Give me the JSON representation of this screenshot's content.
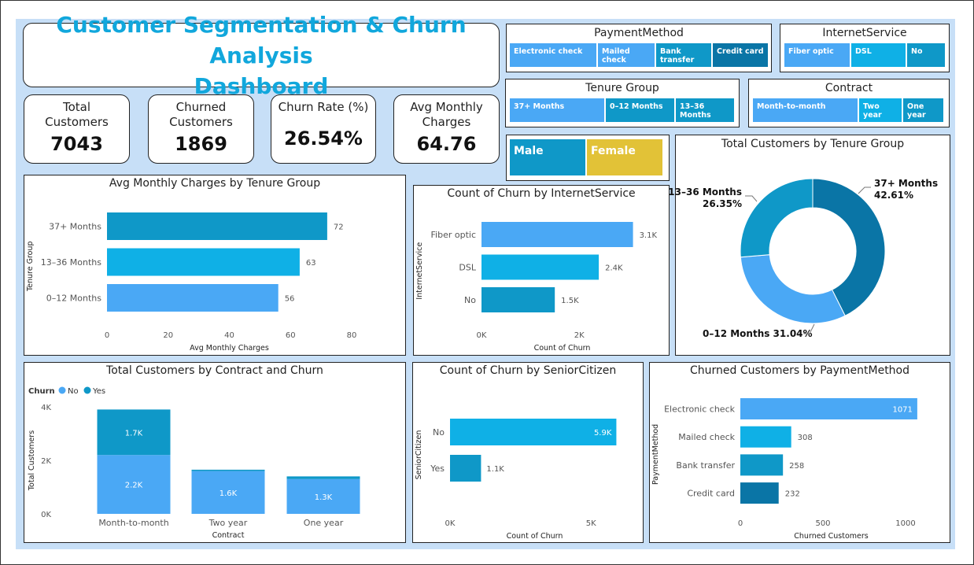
{
  "title": {
    "line1": "Customer Segmentation & Churn Analysis",
    "line2": "Dashboard"
  },
  "kpis": [
    {
      "label1": "Total",
      "label2": "Customers",
      "value": "7043"
    },
    {
      "label1": "Churned",
      "label2": "Customers",
      "value": "1869"
    },
    {
      "label1": "Churn Rate (%)",
      "label2": "",
      "value": "26.54%"
    },
    {
      "label1": "Avg Monthly",
      "label2": "Charges",
      "value": "64.76"
    }
  ],
  "slicers": {
    "payment": {
      "title": "PaymentMethod",
      "items": [
        "Electronic check",
        "Mailed check",
        "Bank transfer",
        "Credit card"
      ]
    },
    "internet": {
      "title": "InternetService",
      "items": [
        "Fiber optic",
        "DSL",
        "No"
      ]
    },
    "tenure": {
      "title": "Tenure Group",
      "items": [
        "37+ Months",
        "0–12 Months",
        "13–36 Months"
      ]
    },
    "contract": {
      "title": "Contract",
      "items": [
        "Month-to-month",
        "Two year",
        "One year"
      ]
    },
    "gender": {
      "items": [
        "Male",
        "Female"
      ]
    }
  },
  "colors": {
    "blue_light": "#4aa8f5",
    "blue_cyan": "#0fb0e6",
    "blue_mid": "#0f98c8",
    "blue_dark": "#0a75a6",
    "yellow": "#e2c237",
    "title": "#11a7dc"
  },
  "chart_data": [
    {
      "id": "avg_charges_tenure",
      "type": "bar",
      "orientation": "horizontal",
      "title": "Avg Monthly Charges by Tenure Group",
      "xlabel": "Avg Monthly Charges",
      "ylabel": "Tenure Group",
      "categories": [
        "37+ Months",
        "13–36 Months",
        "0–12 Months"
      ],
      "values": [
        72,
        63,
        56
      ],
      "data_labels": [
        "72",
        "63",
        "56"
      ],
      "xlim": [
        0,
        80
      ],
      "xticks": [
        "0",
        "20",
        "40",
        "60",
        "80"
      ]
    },
    {
      "id": "churn_internet",
      "type": "bar",
      "orientation": "horizontal",
      "title": "Count of Churn by InternetService",
      "xlabel": "Count of Churn",
      "ylabel": "InternetService",
      "categories": [
        "Fiber optic",
        "DSL",
        "No"
      ],
      "values": [
        3100,
        2400,
        1500
      ],
      "data_labels": [
        "3.1K",
        "2.4K",
        "1.5K"
      ],
      "xlim": [
        0,
        3300
      ],
      "xticks": [
        "0K",
        "2K"
      ]
    },
    {
      "id": "tenure_donut",
      "type": "pie",
      "title": "Total Customers by Tenure Group",
      "categories": [
        "37+ Months",
        "0–12 Months",
        "13–36 Months"
      ],
      "values": [
        42.61,
        31.04,
        26.35
      ],
      "labels": [
        "42.61%",
        "31.04%",
        "26.35%"
      ]
    },
    {
      "id": "contract_churn",
      "type": "bar",
      "stacked": true,
      "title": "Total Customers by Contract and Churn",
      "xlabel": "Contract",
      "ylabel": "Total Customers",
      "legend_title": "Churn",
      "categories": [
        "Month-to-month",
        "Two year",
        "One year"
      ],
      "series": [
        {
          "name": "No",
          "values": [
            2200,
            1600,
            1300
          ],
          "labels": [
            "2.2K",
            "1.6K",
            "1.3K"
          ]
        },
        {
          "name": "Yes",
          "values": [
            1700,
            50,
            100
          ],
          "labels": [
            "1.7K",
            "",
            ""
          ]
        }
      ],
      "ylim": [
        0,
        4000
      ],
      "yticks": [
        "0K",
        "2K",
        "4K"
      ]
    },
    {
      "id": "churn_senior",
      "type": "bar",
      "orientation": "horizontal",
      "title": "Count of Churn by SeniorCitizen",
      "xlabel": "Count of Churn",
      "ylabel": "SeniorCitizen",
      "categories": [
        "No",
        "Yes"
      ],
      "values": [
        5900,
        1100
      ],
      "data_labels": [
        "5.9K",
        "1.1K"
      ],
      "xlim": [
        0,
        6000
      ],
      "xticks": [
        "0K",
        "5K"
      ]
    },
    {
      "id": "churned_payment",
      "type": "bar",
      "orientation": "horizontal",
      "title": "Churned Customers by PaymentMethod",
      "xlabel": "Churned Customers",
      "ylabel": "PaymentMethod",
      "categories": [
        "Electronic check",
        "Mailed check",
        "Bank transfer",
        "Credit card"
      ],
      "values": [
        1071,
        308,
        258,
        232
      ],
      "data_labels": [
        "1071",
        "308",
        "258",
        "232"
      ],
      "xlim": [
        0,
        1100
      ],
      "xticks": [
        "0",
        "500",
        "1000"
      ]
    }
  ]
}
